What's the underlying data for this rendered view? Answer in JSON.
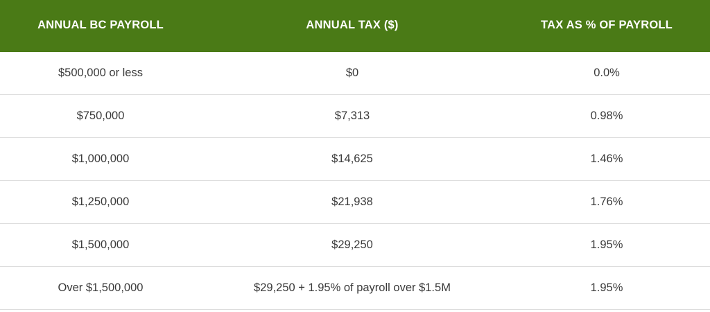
{
  "table": {
    "headers": [
      "ANNUAL BC PAYROLL",
      "ANNUAL TAX ($)",
      "TAX AS % OF PAYROLL"
    ],
    "rows": [
      [
        "$500,000 or less",
        "$0",
        "0.0%"
      ],
      [
        "$750,000",
        "$7,313",
        "0.98%"
      ],
      [
        "$1,000,000",
        "$14,625",
        "1.46%"
      ],
      [
        "$1,250,000",
        "$21,938",
        "1.76%"
      ],
      [
        "$1,500,000",
        "$29,250",
        "1.95%"
      ],
      [
        "Over $1,500,000",
        "$29,250 + 1.95% of payroll over $1.5M",
        "1.95%"
      ]
    ]
  },
  "colors": {
    "header_background": "#4a7a16",
    "header_text": "#ffffff",
    "body_text": "#3a3a3a",
    "row_divider": "#dcdcdc"
  }
}
